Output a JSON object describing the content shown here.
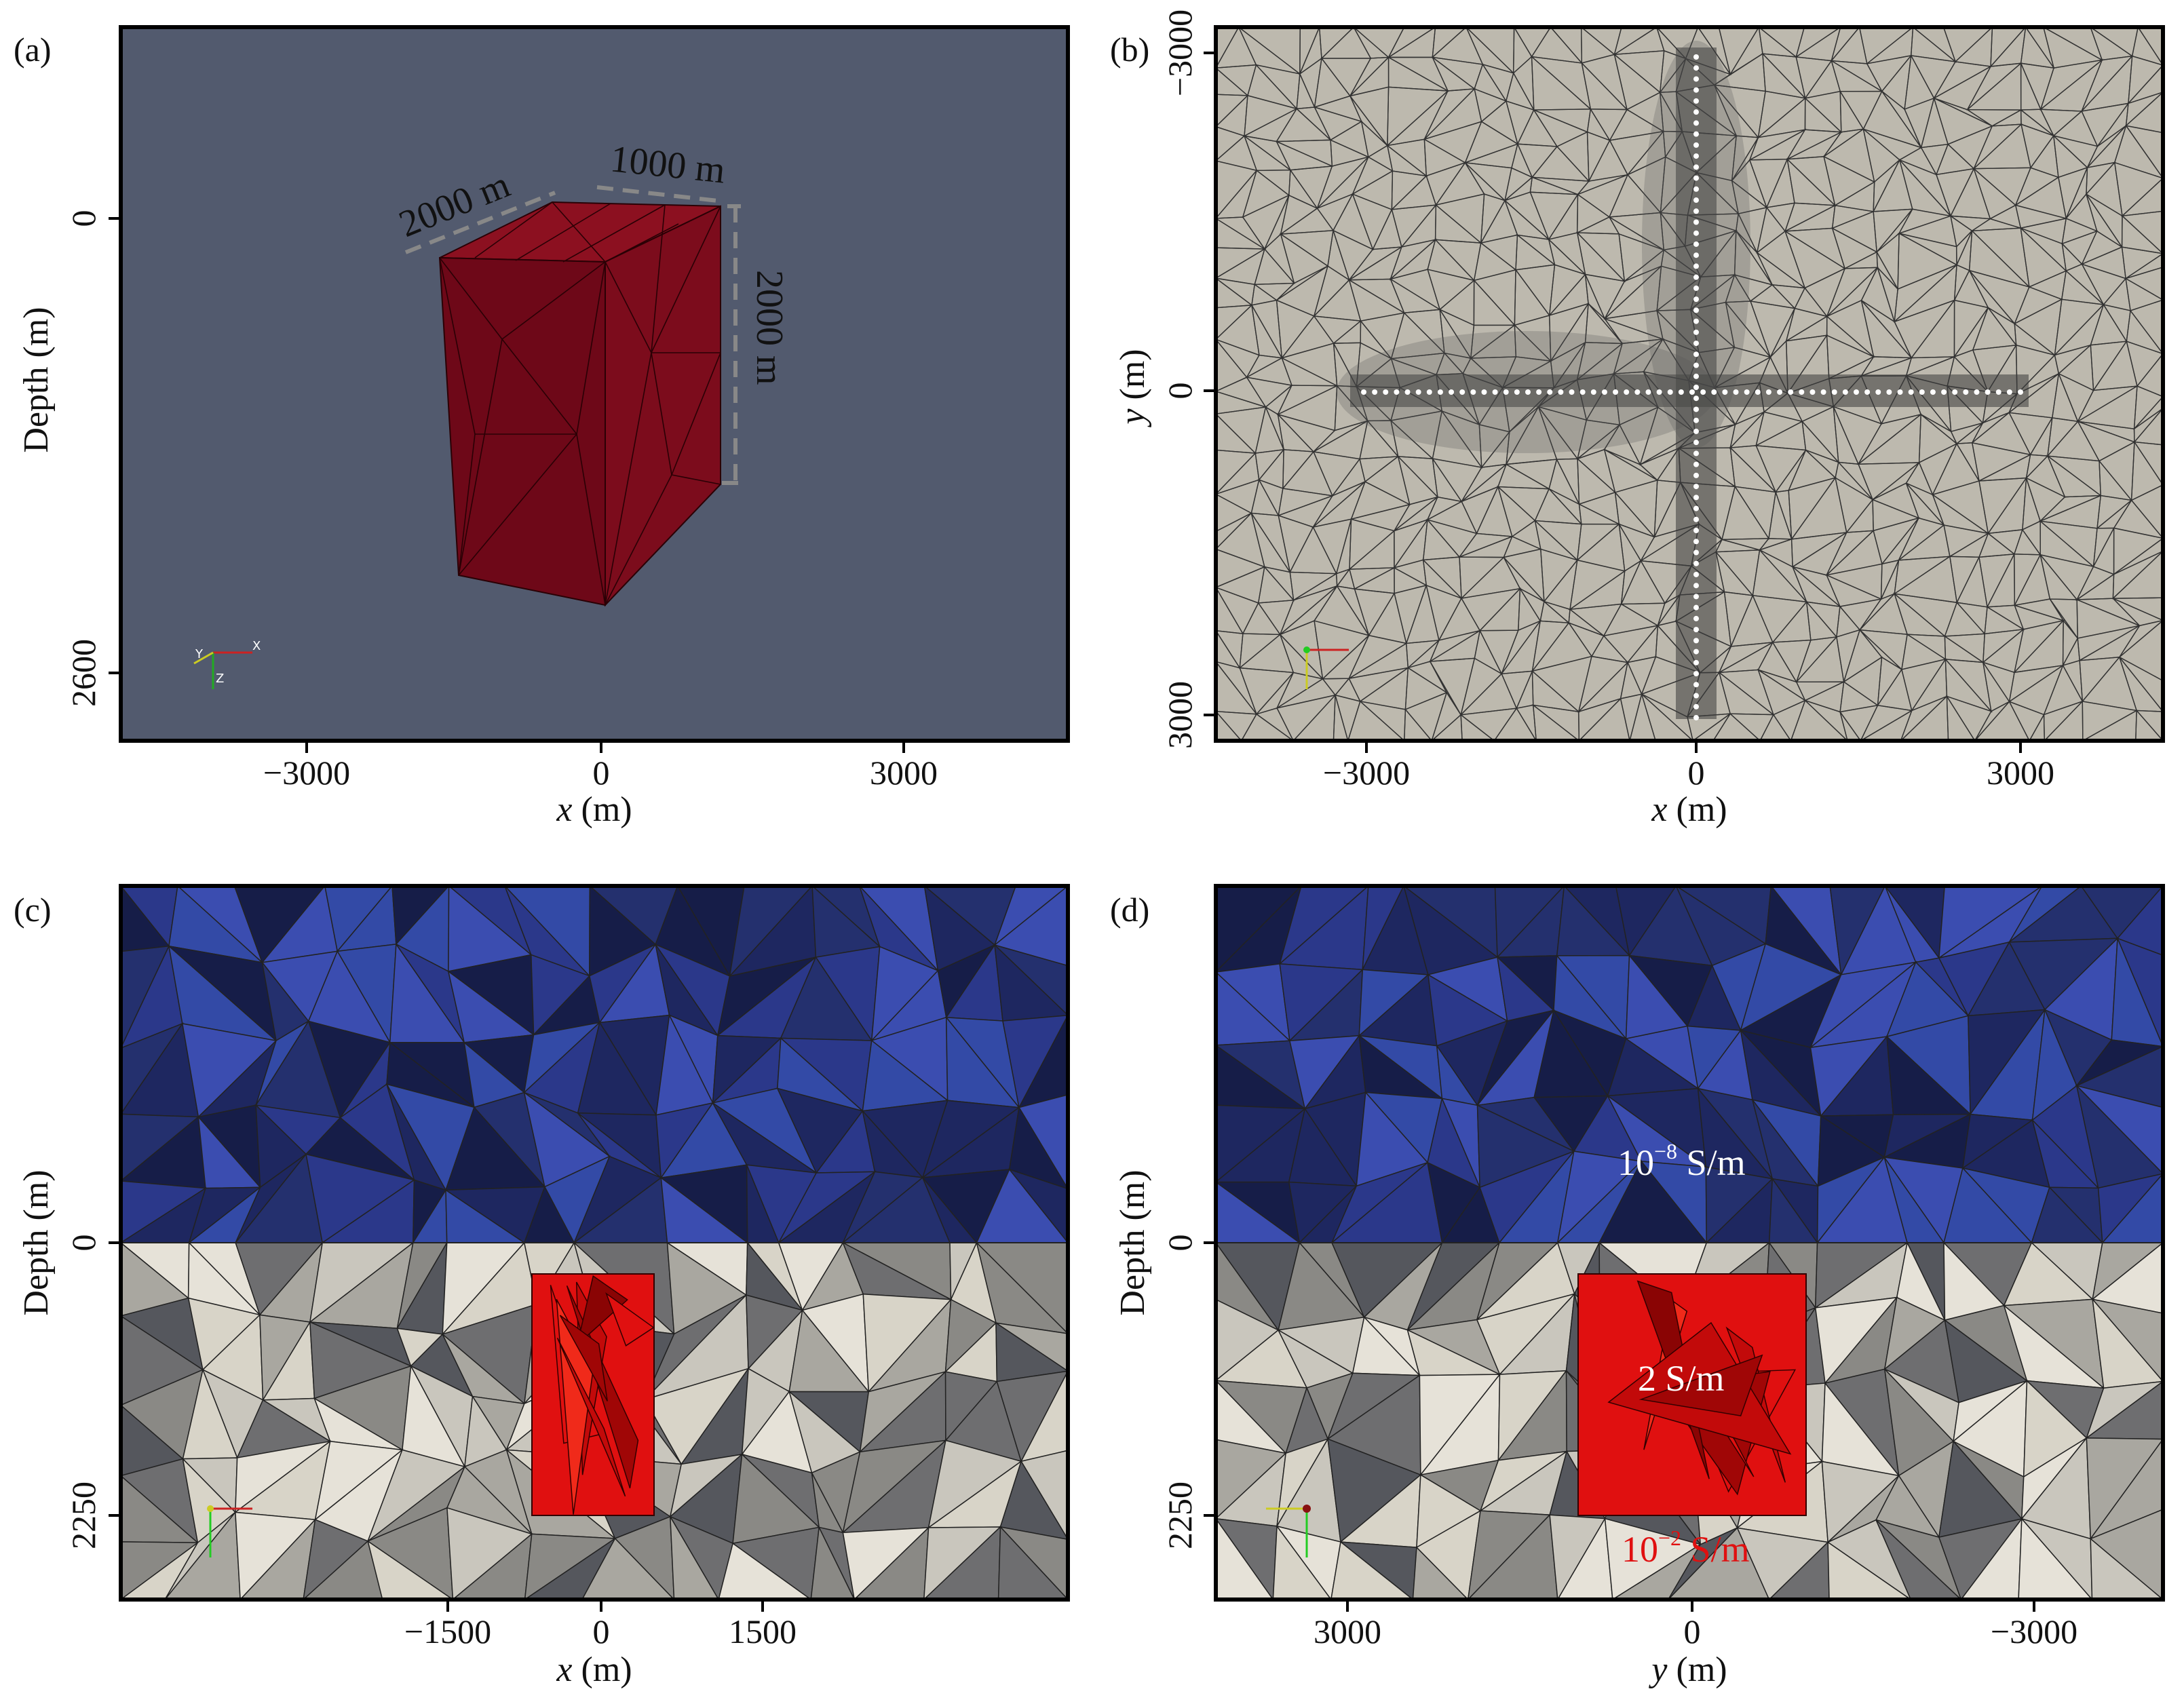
{
  "figure": {
    "panels": [
      {
        "id": "a",
        "label": "(a)",
        "xlabel_var": "x",
        "xlabel_unit": " (m)",
        "ylabel": "Depth (m)",
        "xticks": [
          "−3000",
          "0",
          "3000"
        ],
        "yticks": [
          "0",
          "2600"
        ],
        "annotations": {
          "width": "2000 m",
          "depth": "1000 m",
          "height": "2000 m"
        },
        "colors": {
          "background": "#525a6e",
          "body": "#7a0a18",
          "body_top": "#8c1020"
        }
      },
      {
        "id": "b",
        "label": "(b)",
        "xlabel_var": "x",
        "xlabel_unit": " (m)",
        "ylabel_var": "y",
        "ylabel_unit": " (m)",
        "xticks": [
          "−3000",
          "0",
          "3000"
        ],
        "yticks": [
          "−3000",
          "0",
          "3000"
        ],
        "colors": {
          "background": "#bdb9ae",
          "mesh": "#2a2a2a",
          "stations": "#ffffff"
        }
      },
      {
        "id": "c",
        "label": "(c)",
        "xlabel_var": "x",
        "xlabel_unit": " (m)",
        "ylabel": "Depth (m)",
        "xticks": [
          "−1500",
          "0",
          "1500"
        ],
        "yticks": [
          "0",
          "2250"
        ],
        "colors": {
          "air": "#2e3b8c",
          "ground": "#b5b3ac",
          "anomaly": "#e01010"
        }
      },
      {
        "id": "d",
        "label": "(d)",
        "xlabel_var": "y",
        "xlabel_unit": " (m)",
        "ylabel": "Depth (m)",
        "xticks": [
          "3000",
          "0",
          "−3000"
        ],
        "yticks": [
          "0",
          "2250"
        ],
        "annotations": {
          "air_base": "10",
          "air_exp": "−8",
          "air_unit": " S/m",
          "anomaly": "2 S/m",
          "ground_base": "10",
          "ground_exp": "−2",
          "ground_unit": " S/m"
        },
        "colors": {
          "air": "#2e3b8c",
          "ground": "#b5b3ac",
          "anomaly": "#e01010",
          "ground_text": "#e01010"
        }
      }
    ],
    "axis_triad": {
      "x": "X",
      "y": "Y",
      "z": "Z"
    }
  }
}
